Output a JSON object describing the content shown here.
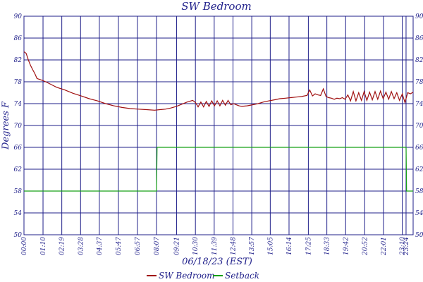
{
  "chart_data": {
    "type": "line",
    "title": "SW Bedroom",
    "xlabel": "06/18/23 (EST)",
    "ylabel": "Degrees F",
    "ylim": [
      50,
      90
    ],
    "y_ticks": [
      50,
      54,
      58,
      62,
      66,
      70,
      74,
      78,
      82,
      86,
      90
    ],
    "y_tick_labels": [
      "50",
      "54",
      "58",
      "62",
      "66",
      "70",
      "74",
      "78",
      "82",
      "86",
      "90"
    ],
    "x_range_minutes": [
      0,
      1430
    ],
    "x_tick_labels": [
      "00:00",
      "01:10",
      "02:19",
      "03:28",
      "04:37",
      "05:47",
      "06:57",
      "08:07",
      "09:21",
      "10:30",
      "11:39",
      "12:48",
      "13:57",
      "15:05",
      "16:14",
      "17:25",
      "18:33",
      "19:42",
      "20:52",
      "22:01",
      "23:10",
      "23:24"
    ],
    "x_tick_minutes": [
      0,
      70,
      139,
      208,
      277,
      347,
      417,
      487,
      561,
      630,
      699,
      768,
      837,
      905,
      974,
      1045,
      1113,
      1182,
      1252,
      1321,
      1390,
      1404
    ],
    "grid": true,
    "legend_position": "bottom-center",
    "series": [
      {
        "name": "SW Bedroom",
        "color": "#a01010",
        "x": [
          0,
          8,
          16,
          24,
          32,
          40,
          48,
          60,
          80,
          100,
          120,
          150,
          180,
          210,
          240,
          270,
          300,
          330,
          360,
          390,
          420,
          450,
          480,
          500,
          520,
          540,
          560,
          580,
          600,
          620,
          630,
          640,
          650,
          660,
          670,
          680,
          690,
          700,
          710,
          720,
          730,
          740,
          750,
          760,
          770,
          780,
          790,
          800,
          820,
          840,
          860,
          880,
          900,
          920,
          940,
          960,
          980,
          1000,
          1020,
          1040,
          1050,
          1060,
          1070,
          1080,
          1090,
          1100,
          1110,
          1120,
          1130,
          1140,
          1150,
          1160,
          1170,
          1180,
          1190,
          1200,
          1210,
          1220,
          1230,
          1240,
          1250,
          1260,
          1270,
          1280,
          1290,
          1300,
          1310,
          1320,
          1330,
          1340,
          1350,
          1360,
          1370,
          1380,
          1390,
          1400,
          1410,
          1420,
          1430
        ],
        "values": [
          83.5,
          83.2,
          82.0,
          81.0,
          80.2,
          79.5,
          78.6,
          78.4,
          78.0,
          77.5,
          77.0,
          76.5,
          75.9,
          75.4,
          74.9,
          74.5,
          74.0,
          73.6,
          73.3,
          73.1,
          73.0,
          72.9,
          72.8,
          72.9,
          73.0,
          73.2,
          73.5,
          73.9,
          74.3,
          74.6,
          74.2,
          73.4,
          74.3,
          73.4,
          74.4,
          73.5,
          74.5,
          73.6,
          74.5,
          73.6,
          74.6,
          73.7,
          74.6,
          73.8,
          74.0,
          73.8,
          73.6,
          73.5,
          73.6,
          73.8,
          74.0,
          74.3,
          74.5,
          74.7,
          74.9,
          75.0,
          75.1,
          75.2,
          75.3,
          75.5,
          76.5,
          75.4,
          75.8,
          75.6,
          75.5,
          76.7,
          75.3,
          75.1,
          75.0,
          74.8,
          75.0,
          74.9,
          75.1,
          74.8,
          75.6,
          74.5,
          76.2,
          74.5,
          76.0,
          74.6,
          76.2,
          74.6,
          76.1,
          74.7,
          76.2,
          74.8,
          76.3,
          74.9,
          76.1,
          74.8,
          76.2,
          74.9,
          76.0,
          74.6,
          75.8,
          74.2,
          76.0,
          75.8,
          76.1
        ]
      },
      {
        "name": "Setback",
        "color": "#16a016",
        "x": [
          0,
          487,
          489,
          1404,
          1406,
          1430
        ],
        "values": [
          58,
          58,
          66,
          66,
          58,
          58
        ]
      }
    ]
  }
}
